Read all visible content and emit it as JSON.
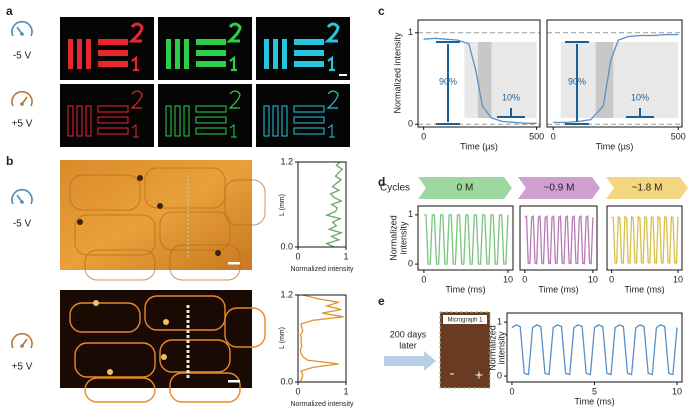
{
  "a": {
    "label": "a",
    "voltages": [
      "-5 V",
      "+5 V"
    ]
  },
  "b": {
    "label": "b",
    "voltages": [
      "-5 V",
      "+5 V"
    ],
    "profiles": [
      {
        "type": "line",
        "ylabel": "L (mm)",
        "xlabel": "Normalized intensity",
        "xlim": [
          0,
          1
        ],
        "xticks": [
          0,
          1
        ],
        "ylim": [
          0,
          1.2
        ],
        "yticks": [
          {
            "value": 0,
            "label": "0.0"
          },
          1.2
        ],
        "color": "#6aa76c",
        "L": [
          0,
          0.05,
          0.1,
          0.15,
          0.2,
          0.25,
          0.3,
          0.35,
          0.4,
          0.45,
          0.5,
          0.55,
          0.6,
          0.65,
          0.7,
          0.75,
          0.8,
          0.85,
          0.9,
          0.95,
          1,
          1.05,
          1.1,
          1.15,
          1.2
        ],
        "values": [
          0.75,
          0.6,
          0.85,
          0.7,
          0.9,
          0.65,
          0.8,
          0.72,
          0.88,
          0.6,
          0.78,
          0.82,
          0.7,
          0.9,
          0.75,
          0.68,
          0.85,
          0.72,
          0.8,
          0.9,
          0.78,
          0.85,
          0.92,
          0.8,
          0.88
        ]
      },
      {
        "type": "line",
        "ylabel": "L (mm)",
        "xlabel": "Normalized intensity",
        "xlim": [
          0,
          1
        ],
        "xticks": [
          0,
          1
        ],
        "ylim": [
          0,
          1.2
        ],
        "yticks": [
          {
            "value": 0,
            "label": "0.0"
          },
          1.2
        ],
        "color": "#e0922f",
        "L": [
          0,
          0.05,
          0.1,
          0.15,
          0.2,
          0.25,
          0.3,
          0.35,
          0.4,
          0.45,
          0.5,
          0.55,
          0.6,
          0.65,
          0.7,
          0.75,
          0.8,
          0.85,
          0.9,
          0.95,
          1,
          1.05,
          1.1,
          1.15,
          1.2
        ],
        "values": [
          0.05,
          0.08,
          0.1,
          0.06,
          0.3,
          0.85,
          0.2,
          0.1,
          0.06,
          0.05,
          0.08,
          0.06,
          0.07,
          0.05,
          0.1,
          0.08,
          0.06,
          0.3,
          0.95,
          0.5,
          0.9,
          0.6,
          0.85,
          0.4,
          0.1
        ]
      }
    ]
  },
  "c": {
    "label": "c",
    "ylabel": "Normalized intensity",
    "charts": [
      {
        "type": "line",
        "xlabel": "Time (µs)",
        "xlim": [
          -25,
          515
        ],
        "xticks": [
          0,
          500
        ],
        "ylim": [
          -0.03,
          1.14
        ],
        "yticks": [
          0,
          1
        ],
        "reference_lines": [
          0,
          1
        ],
        "annotations": [
          "90%",
          "10%"
        ],
        "color": "#5b8fc7",
        "x": [
          0,
          50,
          100,
          150,
          200,
          230,
          260,
          300,
          350,
          400,
          450,
          500
        ],
        "values": [
          0.93,
          0.94,
          0.93,
          0.92,
          0.88,
          0.6,
          0.2,
          0.07,
          0.03,
          0.02,
          0.01,
          0.01
        ]
      },
      {
        "type": "line",
        "xlabel": "Time (µs)",
        "xlim": [
          -25,
          515
        ],
        "xticks": [
          0,
          500
        ],
        "ylim": [
          -0.03,
          1.14
        ],
        "reference_lines": [
          0,
          1
        ],
        "annotations": [
          "90%",
          "10%"
        ],
        "color": "#5b8fc7",
        "x": [
          0,
          50,
          100,
          150,
          200,
          230,
          260,
          300,
          350,
          400,
          450,
          500
        ],
        "values": [
          0.02,
          0.02,
          0.03,
          0.05,
          0.2,
          0.7,
          0.92,
          0.96,
          0.97,
          0.97,
          0.98,
          0.98
        ]
      }
    ]
  },
  "d": {
    "label": "d",
    "cycles_label": "Cycles",
    "ylabel": [
      "Normalized",
      "intensity"
    ],
    "stages": [
      {
        "name": "0 M",
        "color": "#9ed89f"
      },
      {
        "name": "~0.9 M",
        "color": "#cf9fcf"
      },
      {
        "name": "~1.8 M",
        "color": "#f2d680"
      }
    ],
    "x": [
      0,
      0.25,
      0.5,
      0.75,
      1,
      1.25,
      1.5,
      1.75,
      2,
      2.25,
      2.5,
      2.75,
      3,
      3.25,
      3.5,
      3.75,
      4,
      4.25,
      4.5,
      4.75,
      5,
      5.25,
      5.5,
      5.75,
      6,
      6.25,
      6.5,
      6.75,
      7,
      7.25,
      7.5,
      7.75,
      8,
      8.25,
      8.5,
      8.75,
      9,
      9.25,
      9.5,
      9.75,
      10
    ],
    "charts": [
      {
        "type": "line",
        "xlabel": "Time (ms)",
        "xlim": [
          -0.7,
          10.6
        ],
        "xticks": [
          0,
          10
        ],
        "ylim": [
          -0.12,
          1.18
        ],
        "yticks": [
          0,
          1
        ],
        "color": "#7cc47e",
        "values": [
          1,
          1,
          0,
          0,
          1,
          1,
          0,
          0,
          1,
          1,
          0,
          0,
          1,
          1,
          0,
          0,
          1,
          1,
          0,
          0,
          1,
          1,
          0,
          0,
          1,
          1,
          0,
          0,
          1,
          1,
          0,
          0,
          1,
          1,
          0,
          0,
          1,
          1,
          0,
          0,
          1
        ]
      },
      {
        "type": "line",
        "xlabel": "Time (ms)",
        "xlim": [
          -0.7,
          10.6
        ],
        "xticks": [
          0,
          10
        ],
        "ylim": [
          -0.12,
          1.18
        ],
        "color": "#b67ab7",
        "values": [
          0.95,
          0.97,
          0.02,
          0.01,
          0.95,
          0.97,
          0.02,
          0.01,
          0.95,
          0.97,
          0.02,
          0.01,
          0.95,
          0.97,
          0.02,
          0.01,
          0.95,
          0.97,
          0.02,
          0.01,
          0.95,
          0.97,
          0.02,
          0.01,
          0.95,
          0.97,
          0.02,
          0.01,
          0.95,
          0.97,
          0.02,
          0.01,
          0.95,
          0.97,
          0.02,
          0.01,
          0.95,
          0.97,
          0.02,
          0.01,
          0.95
        ]
      },
      {
        "type": "line",
        "xlabel": "Time (ms)",
        "xlim": [
          -0.7,
          10.6
        ],
        "xticks": [
          0,
          10
        ],
        "ylim": [
          -0.12,
          1.18
        ],
        "color": "#d8c04a",
        "values": [
          0.96,
          0.94,
          0.03,
          0.02,
          0.96,
          0.94,
          0.03,
          0.02,
          0.96,
          0.94,
          0.03,
          0.02,
          0.96,
          0.94,
          0.03,
          0.02,
          0.96,
          0.94,
          0.03,
          0.02,
          0.96,
          0.94,
          0.03,
          0.02,
          0.96,
          0.94,
          0.03,
          0.02,
          0.96,
          0.94,
          0.03,
          0.02,
          0.96,
          0.94,
          0.03,
          0.02,
          0.96,
          0.94,
          0.03,
          0.02,
          0.96
        ]
      }
    ]
  },
  "e": {
    "label": "e",
    "arrow_text": [
      "200 days",
      "later"
    ],
    "micrograph": {
      "title": "Micrograph 1",
      "minus": "-",
      "plus": "+"
    },
    "chart": {
      "type": "line",
      "ylabel": [
        "Normalized",
        "intensity"
      ],
      "xlabel": "Time (ms)",
      "xlim": [
        -0.3,
        10.3
      ],
      "xticks": [
        0,
        5,
        10
      ],
      "ylim": [
        -0.11,
        1.17
      ],
      "yticks": [
        0,
        1
      ],
      "color": "#5b8fc7",
      "x": [
        0,
        0.25,
        0.5,
        0.75,
        1,
        1.25,
        1.5,
        1.75,
        2,
        2.25,
        2.5,
        2.75,
        3,
        3.25,
        3.5,
        3.75,
        4,
        4.25,
        4.5,
        4.75,
        5,
        5.25,
        5.5,
        5.75,
        6,
        6.25,
        6.5,
        6.75,
        7,
        7.25,
        7.5,
        7.75,
        8,
        8.25,
        8.5,
        8.75,
        9,
        9.25,
        9.5,
        9.75,
        10
      ],
      "values": [
        0.9,
        0.95,
        0.92,
        0.05,
        0.03,
        0.9,
        0.95,
        0.92,
        0.05,
        0.03,
        0.9,
        0.95,
        0.92,
        0.05,
        0.03,
        0.9,
        0.95,
        0.92,
        0.05,
        0.03,
        0.9,
        0.95,
        0.92,
        0.05,
        0.03,
        0.9,
        0.95,
        0.92,
        0.05,
        0.03,
        0.9,
        0.95,
        0.92,
        0.05,
        0.03,
        0.9,
        0.95,
        0.92,
        0.05,
        0.03,
        0.9
      ]
    }
  }
}
